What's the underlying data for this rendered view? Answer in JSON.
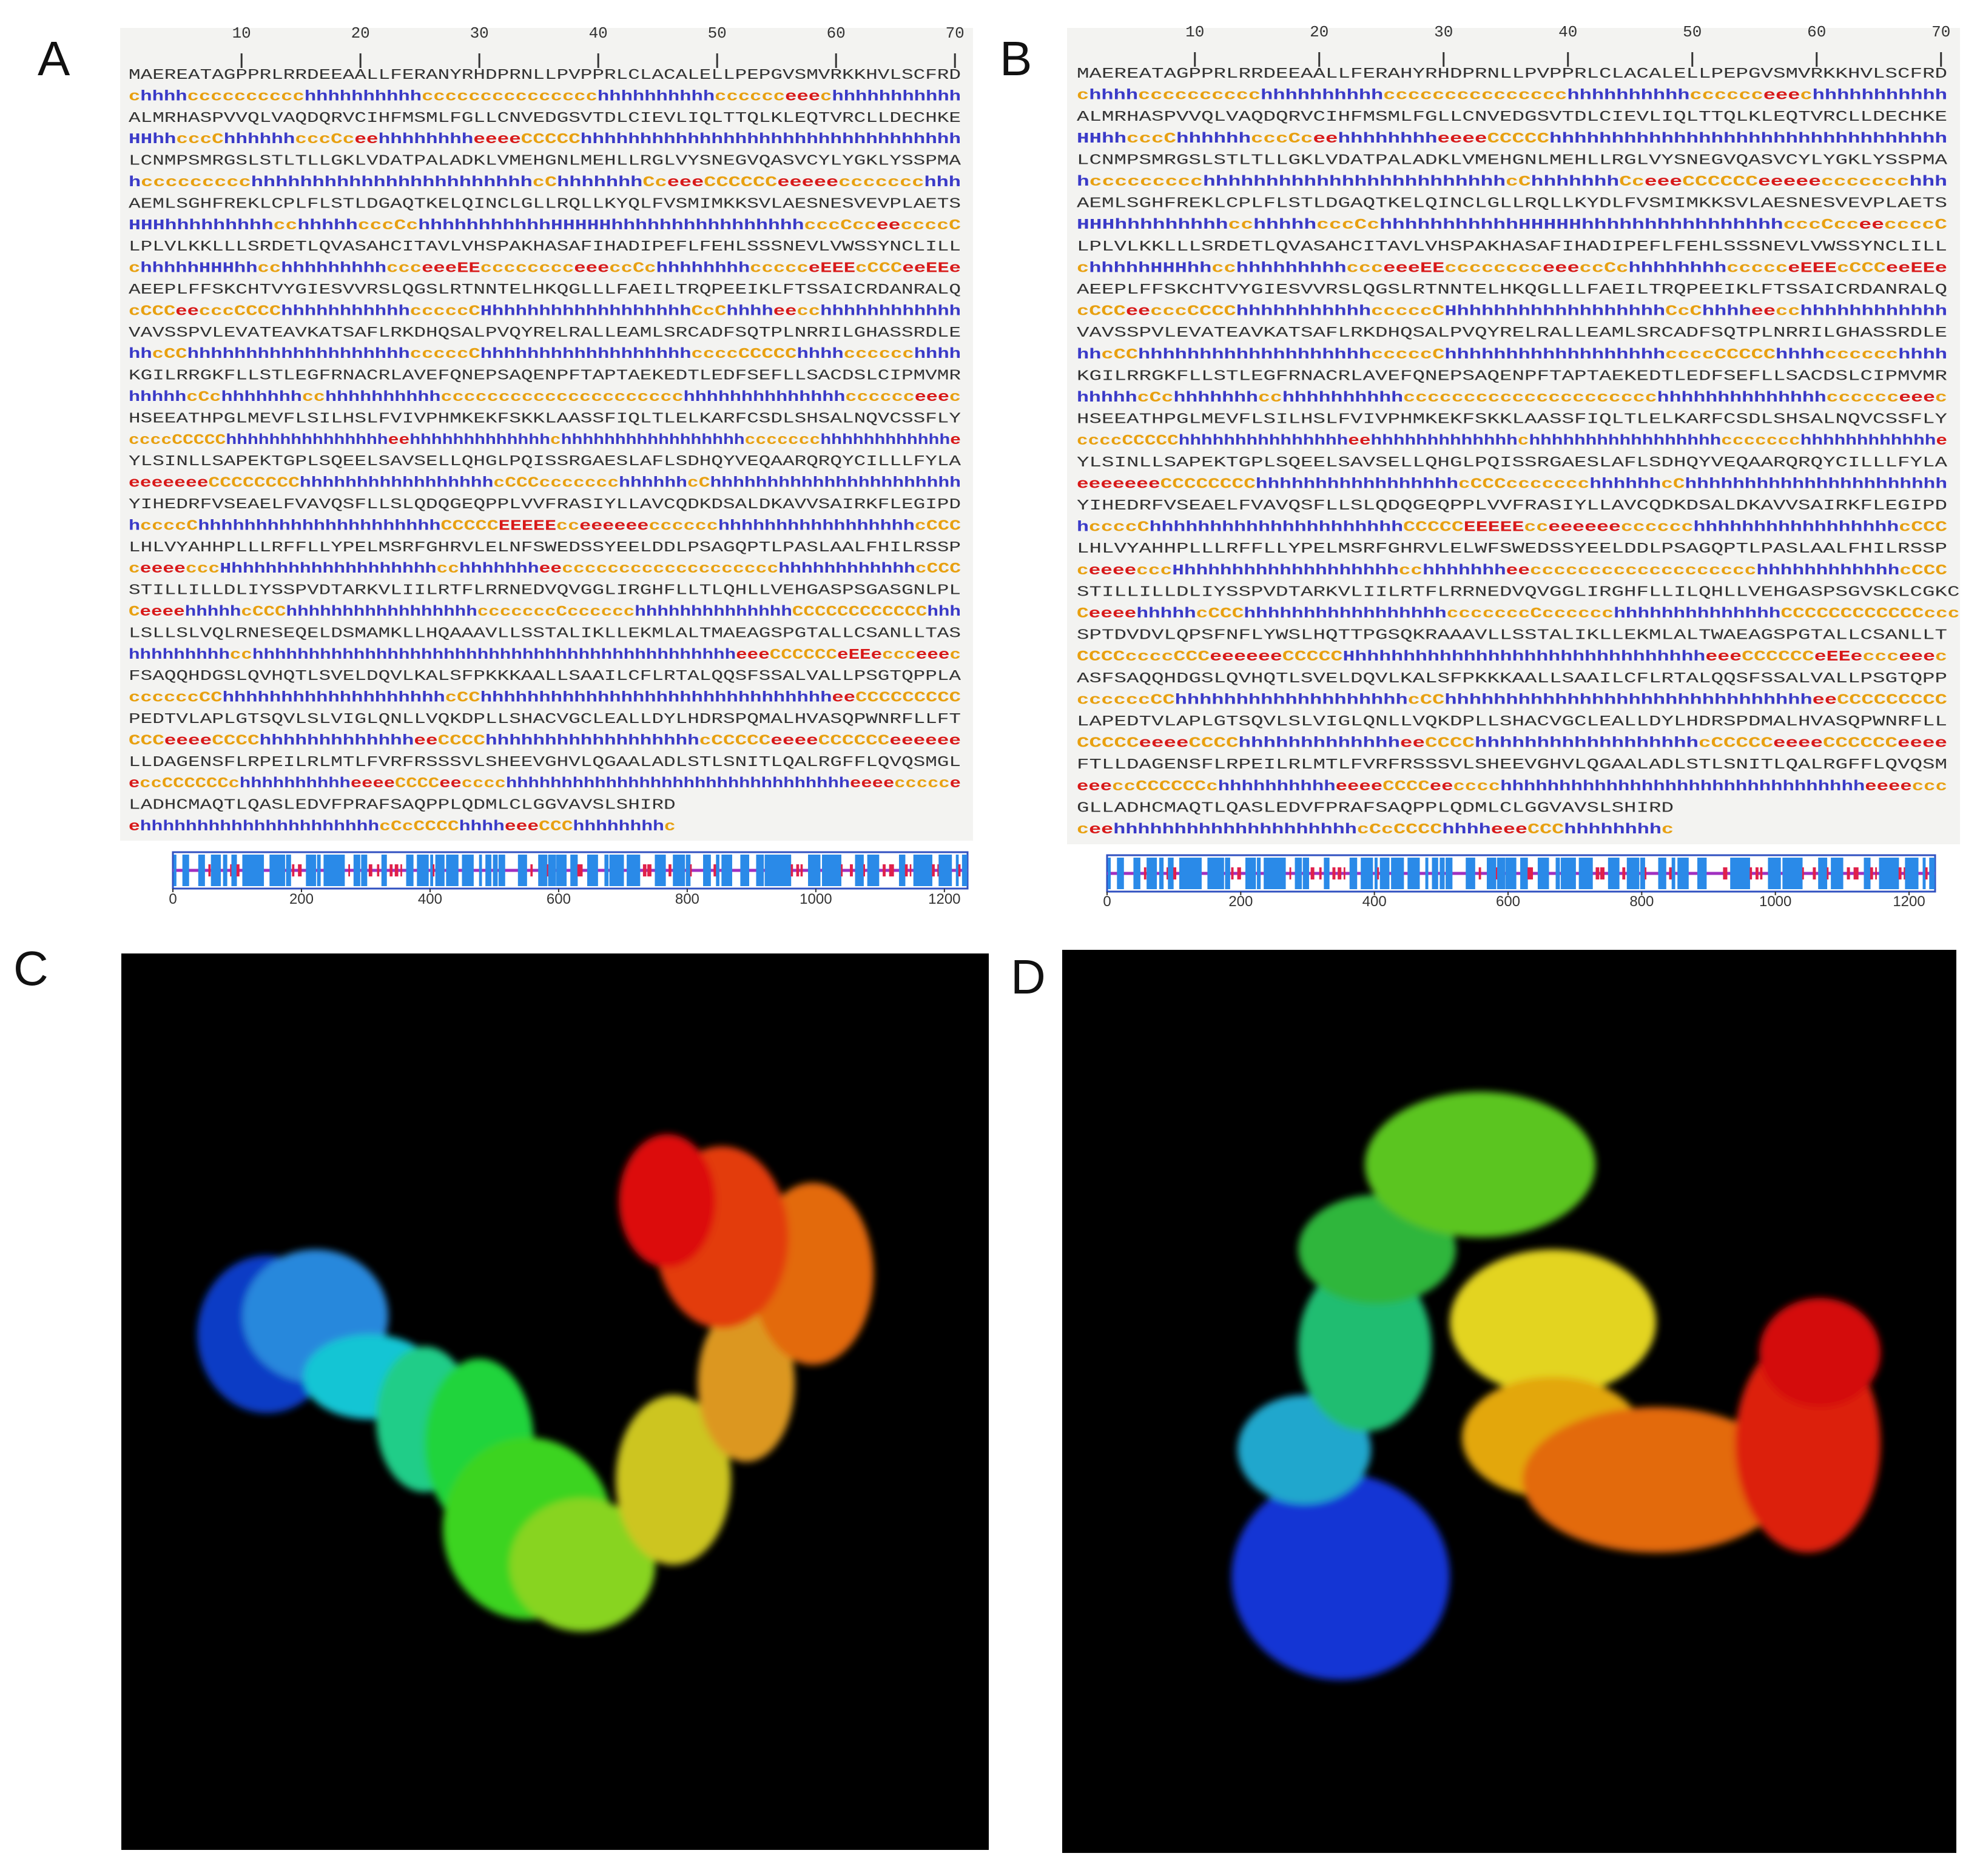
{
  "panels": [
    {
      "label": "A",
      "ruler": [
        10,
        20,
        30,
        40,
        50,
        60,
        70
      ],
      "rows": [
        {
          "seq": "MAEREATAGPPRLRRDEEAALLFERANYRHDPRNLLPVPPRLCLACALELLPEPGVSMVRKKHVLSCFRD",
          "ss": "chhhhcccccccccchhhhhhhhhhccccccccccccccchhhhhhhhhhcccccceeechhhhhhhhhhh"
        },
        {
          "seq": "ALMRHASPVVQLVAQDQRVCIHFMSMLFGLLCNVEDGSVTDLCIEVLIQLTTQLKLEQTVRCLLDECHKE",
          "ss": "HHhhcccChhhhhhcccCceehhhhhhhheeeeCCCCChhhhhhhhhhhhhhhhhhhhhhhhhhhhhhhh"
        },
        {
          "seq": "LCNMPSMRGSLSTLTLLGKLVDATPALADKLVMEHGNLMEHLLRGLVYSNEGVQASVCYLYGKLYSSPMA",
          "ss": "hccccccccchhhhhhhhhhhhhhhhhhhhhhhcChhhhhhhCceeeCCCCCCeeeeeccccccchhh"
        },
        {
          "seq": "AEMLSGHFREKLCPLFLSTLDGAQTKELQINCLGLLRQLLKYQLFVSMIMKKSVLAESNESVEVPLAETS",
          "ss": "HHHhhhhhhhhhcchhhhhcccCchhhhhhhhhhhHHHHHhhhhhhhhhhhhhhhhcccCcceeccccC"
        },
        {
          "seq": "LPLVLKKLLLSRDETLQVASAHCITAVLVHSPAKHASAFIHADIPEFLFEHLSSSNEVLVWSSYNCLILL",
          "ss": "chhhhhHHHhhcchhhhhhhhhccceeeEEcccccccceeeccCchhhhhhhhccccceEEEcCCCeeEEe"
        },
        {
          "seq": "AEEPLFFSKCHTVYGIESVVRSLQGSLRTNNTELHKQGLLLFAEILTRQPEEIKLFTSSAICRDANRALQ",
          "ss": "cCCCeecccCCCChhhhhhhhhhhcccccCHhhhhhhhhhhhhhhhhhCcChhhheecchhhhhhhhhhhh"
        },
        {
          "seq": "VAVSSPVLEVATEAVKATSAFLRKDHQSALPVQYRELRALLEAMLSRCADFSQTPLNRRILGHASSRDLE",
          "ss": "hhcCChhhhhhhhhhhhhhhhhhhcccccChhhhhhhhhhhhhhhhhhccccCCCCChhhhcccccchhhh"
        },
        {
          "seq": "KGILRRGKFLLSTLEGFRNACRLAVEFQNEPSAQENPFTAPTAEKEDTLEDFSEFLLSACDSLCIPMVMR",
          "ss": "hhhhhcCchhhhhhhcchhhhhhhhhhccccccccccccccccccccchhhhhhhhhhhhhhcccccceeec"
        },
        {
          "seq": "HSEEATHPGLMEVFLSILHSLFVIVPHMKEKFSKKLAASSFIQLTLELKARFCSDLSHSALNQVCSSFLY",
          "ss": "ccccCCCCChhhhhhhhhhhhhhheehhhhhhhhhhhhhchhhhhhhhhhhhhhhhhccccccchhhhhhhhhhhhe"
        },
        {
          "seq": "YLSINLLSAPEKTGPLSQEELSAVSELLQHGLPQISSRGAESLAFLSDHQYVEQAARQRQYCILLLFYLA",
          "ss": "eeeeeeeCCCCCCCChhhhhhhhhhhhhhhhhcCCCccccccchhhhhhcChhhhhhhhhhhhhhhhhhhhhh"
        },
        {
          "seq": "YIHEDRFVSEAELFVAVQSFLLSLQDQGEQPPLVVFRASIYLLAVCQDKDSALDKAVVSAIRKFLEGIPD",
          "ss": "hccccChhhhhhhhhhhhhhhhhhhhhCCCCCEEEEEcceeeeeecccccchhhhhhhhhhhhhhhhhcCCC"
        },
        {
          "seq": "LHLVYAHHPLLLRFFLLYPELMSRFGHRVLELNFSWEDSSYEELDDLPSAGQPTLPASLAALFHILRSSP",
          "ss": "ceeeecccHhhhhhhhhhhhhhhhhhhcchhhhhhheeccccccccccccccccccchhhhhhhhhhhhcCCC"
        },
        {
          "seq": "STILLILLDLIYSSPVDTARKVLIILRTFLRRNEDVQVGGLIRGHFLLTLQHLLVEHGASPSGASGNLPL",
          "ss": "CeeeehhhhhcCCChhhhhhhhhhhhhhhhhcccccccCcccccchhhhhhhhhhhhhhCCCCCCCCCCCChhh"
        },
        {
          "seq": "LSLLSLVQLRNESEQELDSMAMKLLHQAAAVLLSSTALIKLLEKMLALTMAEAGSPGTALLCSANLLTAS",
          "ss": "hhhhhhhhhcchhhhhhhhhhhhhhhhhhhhhhhhhhhhhhhhhhhhhhhhhhheeeCCCCCCeEEeccceeec"
        },
        {
          "seq": "FSAQQHDGSLQVHQTLSVELDQVLKALSFPKKKAALLSAAILCFLRTALQQSFSSALVALLPSGTQPPLA",
          "ss": "ccccccCChhhhhhhhhhhhhhhhhhhcCChhhhhhhhhhhhhhhhhhhhhhhhhhhhhheeCCCCCCCCC"
        },
        {
          "seq": "PEDTVLAPLGTSQVLSLVIGLQNLLVQKDPLLSHACVGCLEALLDYLHDRSPQMALHVASQPWNRFLLFT",
          "ss": "CCCeeeeCCCChhhhhhhhhhhhheeCCCChhhhhhhhhhhhhhhhhhcCCCCCeeeeCCCCCCeeeeee"
        },
        {
          "seq": "LLDAGENSFLRPEILRLMTLFVRFRSSSVLSHEEVGHVLQGAALADLSTLSNITLQALRGFFLQVQSMGL",
          "ss": "eccCCCCCCchhhhhhhhhheeeeCCCCeecccchhhhhhhhhhhhhhhhhhhhhhhhhhhhhhheeeeccccce"
        },
        {
          "seq": "LADHCMAQTLQASLEDVFPRAFSAQPPLQDMLCLGGVAVSLSHIRD",
          "ss": "ehhhhhhhhhhhhhhhhhhhhhcCcCCCChhhheeeCCChhhhhhhhc"
        }
      ],
      "scale_ticks": [
        0,
        200,
        400,
        600,
        800,
        1000,
        1200
      ]
    },
    {
      "label": "B",
      "ruler": [
        10,
        20,
        30,
        40,
        50,
        60,
        70
      ],
      "rows": [
        {
          "seq": "MAEREATAGPPRLRRDEEAALLFERAHYRHDPRNLLPVPPRLCLACALELLPEPGVSMVRKKHVLSCFRD",
          "ss": "chhhhcccccccccchhhhhhhhhhccccccccccccccchhhhhhhhhhcccccceeechhhhhhhhhhh"
        },
        {
          "seq": "ALMRHASPVVQLVAQDQRVCIHFMSMLFGLLCNVEDGSVTDLCIEVLIQLTTQLKLEQTVRCLLDECHKE",
          "ss": "HHhhcccChhhhhhcccCceehhhhhhhheeeeCCCCChhhhhhhhhhhhhhhhhhhhhhhhhhhhhhhh"
        },
        {
          "seq": "LCNMPSMRGSLSTLTLLGKLVDATPALADKLVMEHGNLMEHLLRGLVYSNEGVQASVCYLYGKLYSSPMA",
          "ss": "hccccccccchhhhhhhhhhhhhhhhhhhhhhhhcChhhhhhhCceeeCCCCCCeeeeeccccccchhh"
        },
        {
          "seq": "AEMLSGHFREKLCPLFLSTLDGAQTKELQINCLGLLRQLLKYDLFVSMIMKKSVLAESNESVEVPLAETS",
          "ss": "HHHhhhhhhhhhcchhhhhcccCchhhhhhhhhhhHHHHHhhhhhhhhhhhhhhhhcccCcceeccccC"
        },
        {
          "seq": "LPLVLKKLLLSRDETLQVASAHCITAVLVHSPAKHASAFIHADIPEFLFEHLSSSNEVLVWSSYNCLILL",
          "ss": "chhhhhHHHhhcchhhhhhhhhccceeeEEcccccccceeeccCchhhhhhhhccccceEEEcCCCeeEEe"
        },
        {
          "seq": "AEEPLFFSKCHTVYGIESVVRSLQGSLRTNNTELHKQGLLLFAEILTRQPEEIKLFTSSAICRDANRALQ",
          "ss": "cCCCeecccCCCChhhhhhhhhhhcccccCHhhhhhhhhhhhhhhhhhCcChhhheecchhhhhhhhhhhh"
        },
        {
          "seq": "VAVSSPVLEVATEAVKATSAFLRKDHQSALPVQYRELRALLEAMLSRCADFSQTPLNRRILGHASSRDLE",
          "ss": "hhcCChhhhhhhhhhhhhhhhhhhcccccChhhhhhhhhhhhhhhhhhccccCCCCChhhhcccccchhhh"
        },
        {
          "seq": "KGILRRGKFLLSTLEGFRNACRLAVEFQNEPSAQENPFTAPTAEKEDTLEDFSEFLLSACDSLCIPMVMR",
          "ss": "hhhhhcCchhhhhhhcchhhhhhhhhhccccccccccccccccccccchhhhhhhhhhhhhhcccccceeec"
        },
        {
          "seq": "HSEEATHPGLMEVFLSILHSLFVIVPHMKEKFSKKLAASSFIQLTLELKARFCSDLSHSALNQVCSSFLY",
          "ss": "ccccCCCCChhhhhhhhhhhhhhheehhhhhhhhhhhhhchhhhhhhhhhhhhhhhhccccccchhhhhhhhhhhhe"
        },
        {
          "seq": "YLSINLLSAPEKTGPLSQEELSAVSELLQHGLPQISSRGAESLAFLSDHQYVEQAARQRQYCILLLFYLA",
          "ss": "eeeeeeeCCCCCCCChhhhhhhhhhhhhhhhhcCCCccccccchhhhhhcChhhhhhhhhhhhhhhhhhhhhh"
        },
        {
          "seq": "YIHEDRFVSEAELFVAVQSFLLSLQDQGEQPPLVVFRASIYLLAVCQDKDSALDKAVVSAIRKFLEGIPD",
          "ss": "hccccChhhhhhhhhhhhhhhhhhhhhCCCCCEEEEEcceeeeeecccccchhhhhhhhhhhhhhhhhcCCC"
        },
        {
          "seq": "LHLVYAHHPLLLRFFLLYPELMSRFGHRVLELWFSWEDSSYEELDDLPSAGQPTLPASLAALFHILRSSP",
          "ss": "ceeeecccHhhhhhhhhhhhhhhhhhhcchhhhhhheeccccccccccccccccccchhhhhhhhhhhhcCCC"
        },
        {
          "seq": "STILLILLDLIYSSPVDTARKVLIILRTFLRRNEDVQVGGLIRGHFLLILQHLLVEHGASPSGVSKLCGKC",
          "ss": "CeeeehhhhhcCCChhhhhhhhhhhhhhhhhcccccccCcccccchhhhhhhhhhhhhhCCCCCCCCCCCCccc"
        },
        {
          "seq": "SPTDVDVLQPSFNFLYWSLHQTTPGSQKRAAAVLLSSTALIKLLEKMLALTWAEAGSPGTALLCSANLLT",
          "ss": "CCCCccccCCCeeeeeeCCCCCHhhhhhhhhhhhhhhhhhhhhhhhhhhhhheeeCCCCCCeEEeccceeec"
        },
        {
          "seq": "ASFSAQQHDGSLQVHQTLSVELDQVLKALSFPKKKAALLSAAILCFLRTALQQSFSSALVALLPSGTQPP",
          "ss": "ccccccCChhhhhhhhhhhhhhhhhhhcCChhhhhhhhhhhhhhhhhhhhhhhhhhhhhheeCCCCCCCCC"
        },
        {
          "seq": "LAPEDTVLAPLGTSQVLSLVIGLQNLLVQKDPLLSHACVGCLEALLDYLHDRSPDMALHVASQPWNRFLL",
          "ss": "CCCCCeeeeCCCChhhhhhhhhhhhheeCCCChhhhhhhhhhhhhhhhhhcCCCCCeeeeCCCCCCeeee"
        },
        {
          "seq": "FTLLDAGENSFLRPEILRLMTLFVRFRSSSVLSHEEVGHVLQGAALADLSTLSNITLQALRGFFLQVQSM",
          "ss": "eeeccCCCCCCchhhhhhhhhheeeeCCCCeecccchhhhhhhhhhhhhhhhhhhhhhhhhhhhhhheeeeccc"
        },
        {
          "seq": "GLLADHCMAQTLQASLEDVFPRAFSAQPPLQDMLCLGGVAVSLSHIRD",
          "ss": "ceehhhhhhhhhhhhhhhhhhhhcCcCCCChhhheeeCCChhhhhhhhc"
        }
      ],
      "scale_ticks": [
        0,
        200,
        400,
        600,
        800,
        1000,
        1200
      ]
    },
    {
      "label": "C"
    },
    {
      "label": "D"
    }
  ]
}
